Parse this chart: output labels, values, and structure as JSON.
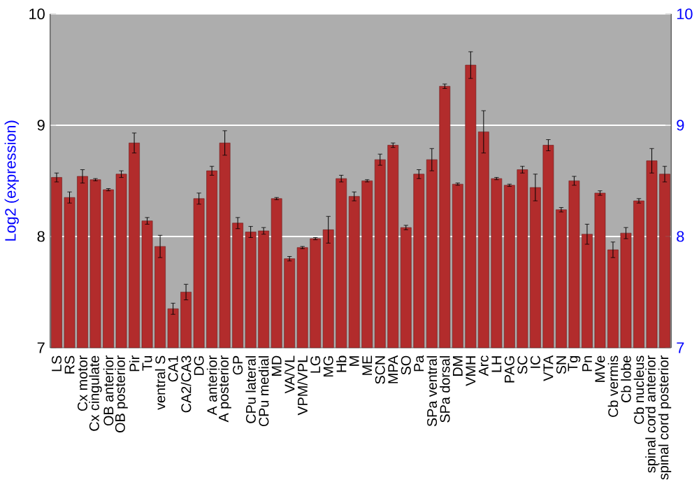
{
  "chart_data": {
    "type": "bar",
    "ylabel": "Log2 (expression)",
    "categories": [
      "LS",
      "RS",
      "Cx motor",
      "Cx cingulate",
      "OB anterior",
      "OB posterior",
      "Pir",
      "Tu",
      "ventral S",
      "CA1",
      "CA2/CA3",
      "DG",
      "A anterior",
      "A posterior",
      "GP",
      "CPu lateral",
      "CPu medial",
      "MD",
      "VA/VL",
      "VPM/VPL",
      "LG",
      "MG",
      "Hb",
      "M",
      "ME",
      "SCN",
      "MPA",
      "SO",
      "Pa",
      "SPa ventral",
      "SPa dorsal",
      "DM",
      "VMH",
      "Arc",
      "LH",
      "PAG",
      "SC",
      "IC",
      "VTA",
      "SN",
      "Tg",
      "Pn",
      "MVe",
      "Cb vermis",
      "Cb lobe",
      "Cb nucleus",
      "spinal cord anterior",
      "spinal cord posterior"
    ],
    "values": [
      8.53,
      8.35,
      8.54,
      8.51,
      8.42,
      8.56,
      8.84,
      8.14,
      7.91,
      7.35,
      7.5,
      8.34,
      8.59,
      8.84,
      8.12,
      8.04,
      8.05,
      8.34,
      7.8,
      7.9,
      7.98,
      8.06,
      8.52,
      8.36,
      8.5,
      8.69,
      8.82,
      8.08,
      8.56,
      8.69,
      9.35,
      8.47,
      9.54,
      8.94,
      8.52,
      8.46,
      8.6,
      8.44,
      8.82,
      8.24,
      8.5,
      8.02,
      8.39,
      7.88,
      8.03,
      8.32,
      8.68,
      8.56
    ],
    "errors": [
      0.04,
      0.05,
      0.06,
      0.01,
      0.01,
      0.03,
      0.09,
      0.03,
      0.1,
      0.05,
      0.07,
      0.05,
      0.04,
      0.11,
      0.05,
      0.05,
      0.03,
      0.01,
      0.02,
      0.01,
      0.01,
      0.12,
      0.03,
      0.04,
      0.01,
      0.05,
      0.02,
      0.02,
      0.04,
      0.1,
      0.02,
      0.01,
      0.12,
      0.19,
      0.01,
      0.01,
      0.03,
      0.12,
      0.05,
      0.02,
      0.04,
      0.09,
      0.02,
      0.07,
      0.05,
      0.02,
      0.11,
      0.07
    ],
    "color": "#b22c2c",
    "ylim": [
      7,
      10
    ],
    "yticks": [
      7,
      8,
      9,
      10
    ],
    "y2lim": [
      7,
      10
    ],
    "y2ticks": [
      7,
      8,
      9,
      10
    ],
    "grid": "y"
  }
}
